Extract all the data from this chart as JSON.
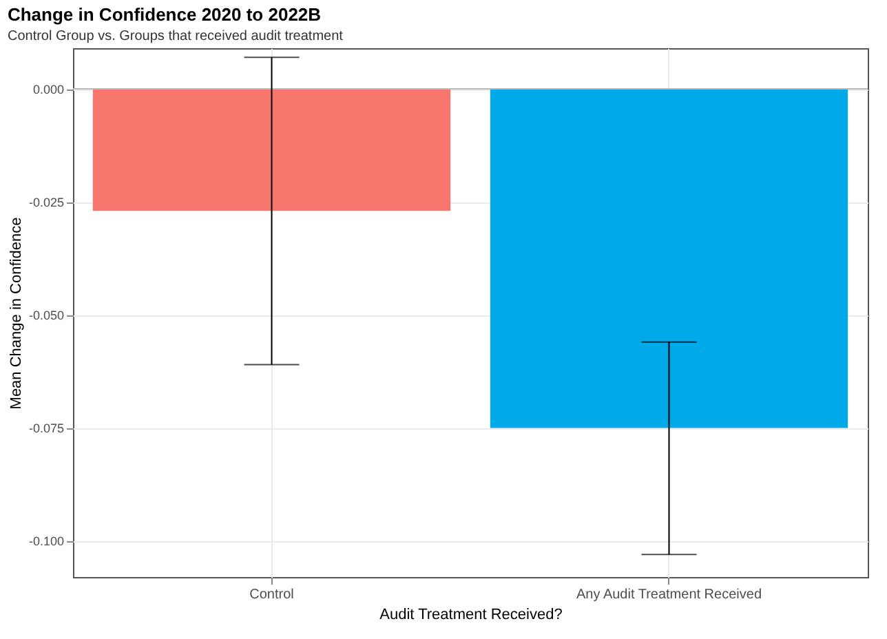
{
  "chart_data": {
    "type": "bar",
    "title": "Change in Confidence 2020 to 2022B",
    "subtitle": "Control Group vs. Groups that received audit treatment",
    "xlabel": "Audit Treatment Received?",
    "ylabel": "Mean Change in Confidence",
    "categories": [
      "Control",
      "Any Audit Treatment Received"
    ],
    "values": [
      -0.027,
      -0.075
    ],
    "colors": [
      "#f8766d",
      "#00a9e8"
    ],
    "errors": [
      [
        -0.061,
        0.007
      ],
      [
        -0.103,
        -0.056
      ]
    ],
    "ylim": [
      -0.108,
      0.009
    ],
    "yticks": [
      {
        "value": 0,
        "label": "0.000"
      },
      {
        "value": -0.025,
        "label": "-0.025"
      },
      {
        "value": -0.05,
        "label": "-0.050"
      },
      {
        "value": -0.075,
        "label": "-0.075"
      },
      {
        "value": -0.1,
        "label": "-0.100"
      }
    ],
    "ref_lines": [
      {
        "axis": "y",
        "value": 0,
        "color": "#bbbbbb"
      }
    ],
    "grid": true
  }
}
